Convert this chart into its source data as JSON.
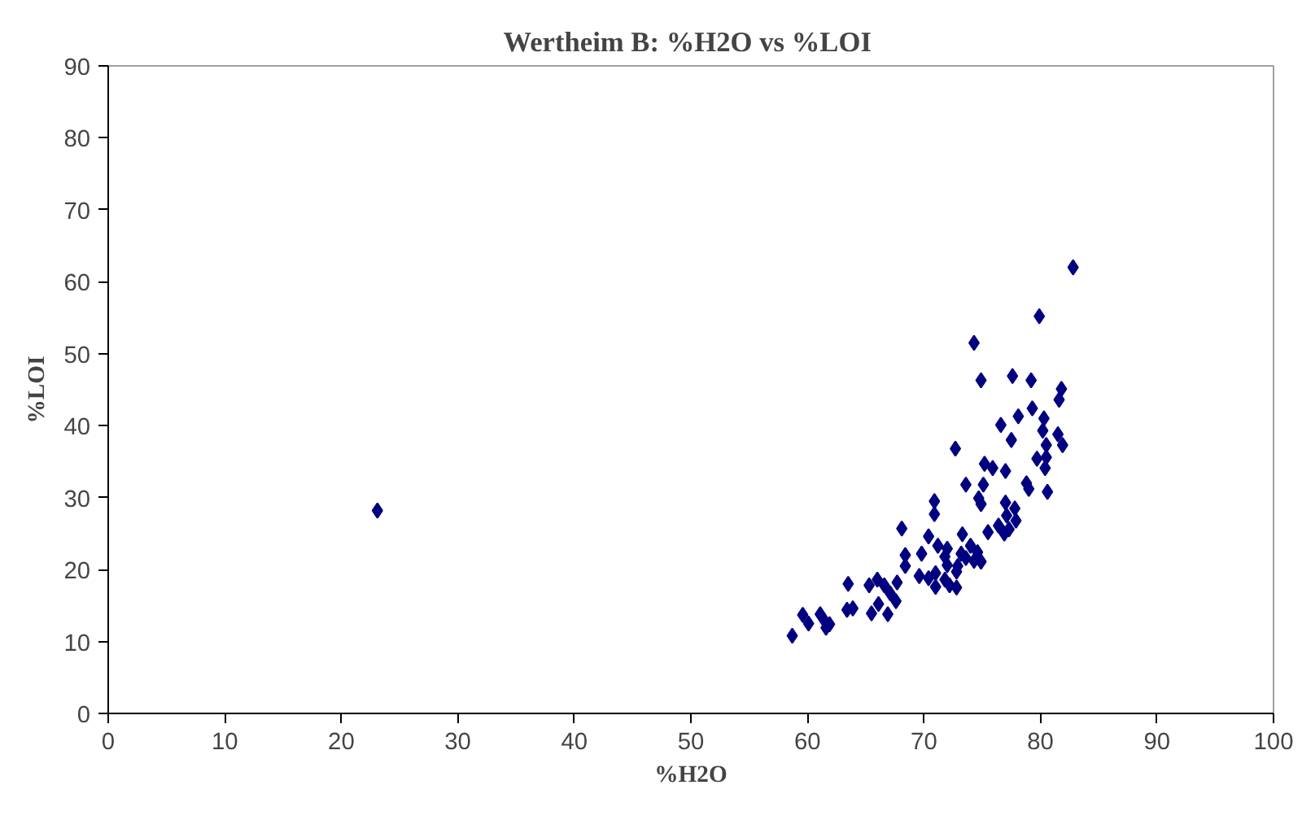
{
  "chart_data": {
    "type": "scatter",
    "title": "Wertheim B:  %H2O vs %LOI",
    "xlabel": "%H2O",
    "ylabel": "%LOI",
    "xlim": [
      0,
      100
    ],
    "xticks": [
      0,
      10,
      20,
      30,
      40,
      50,
      60,
      70,
      80,
      90,
      100
    ],
    "ylim": [
      0,
      90
    ],
    "yticks": [
      0,
      10,
      20,
      30,
      40,
      50,
      60,
      70,
      80,
      90
    ],
    "grid": false,
    "marker": "diamond",
    "series": [
      {
        "color": "#000080",
        "x": [
          23.1,
          82.8,
          79.9,
          74.3,
          74.9,
          77.6,
          79.2,
          81.8,
          81.6,
          79.3,
          78.1,
          76.6,
          80.3,
          80.2,
          81.5,
          81.9,
          80.5,
          77.5,
          72.7,
          79.7,
          80.5,
          80.4,
          75.2,
          75.9,
          77.0,
          73.6,
          75.1,
          78.8,
          79.0,
          80.6,
          70.9,
          74.7,
          74.9,
          70.9,
          77.0,
          77.8,
          77.1,
          77.9,
          68.1,
          76.4,
          76.9,
          77.3,
          70.4,
          73.3,
          75.5,
          71.2,
          72.0,
          73.2,
          74.0,
          74.6,
          68.4,
          69.8,
          71.8,
          73.6,
          72.9,
          74.3,
          74.9,
          68.4,
          72.0,
          72.8,
          69.6,
          70.4,
          71.0,
          71.0,
          71.8,
          72.2,
          72.8,
          63.5,
          65.3,
          66.0,
          66.6,
          67.7,
          67.1,
          67.6,
          66.1,
          63.4,
          63.9,
          65.5,
          66.9,
          59.6,
          61.1,
          60.1,
          61.5,
          61.9,
          61.6,
          58.7
        ],
        "values": [
          28.2,
          62.0,
          55.2,
          51.5,
          46.3,
          46.9,
          46.3,
          45.1,
          43.6,
          42.4,
          41.3,
          40.1,
          41.0,
          39.3,
          38.8,
          37.3,
          37.3,
          38.0,
          36.8,
          35.4,
          35.6,
          34.1,
          34.7,
          34.1,
          33.7,
          31.8,
          31.8,
          32.0,
          31.2,
          30.8,
          29.5,
          29.9,
          29.1,
          27.7,
          29.3,
          28.5,
          27.5,
          26.8,
          25.7,
          26.1,
          25.0,
          25.6,
          24.6,
          24.9,
          25.2,
          23.3,
          22.9,
          22.2,
          23.3,
          22.4,
          22.0,
          22.2,
          21.8,
          21.6,
          20.5,
          21.2,
          21.1,
          20.5,
          20.6,
          19.7,
          19.1,
          18.8,
          19.5,
          17.6,
          18.6,
          17.8,
          17.5,
          18.0,
          17.8,
          18.6,
          17.8,
          18.2,
          16.7,
          15.6,
          15.2,
          14.4,
          14.6,
          13.9,
          13.8,
          13.7,
          13.8,
          12.5,
          12.8,
          12.4,
          11.9,
          10.8
        ]
      }
    ]
  }
}
